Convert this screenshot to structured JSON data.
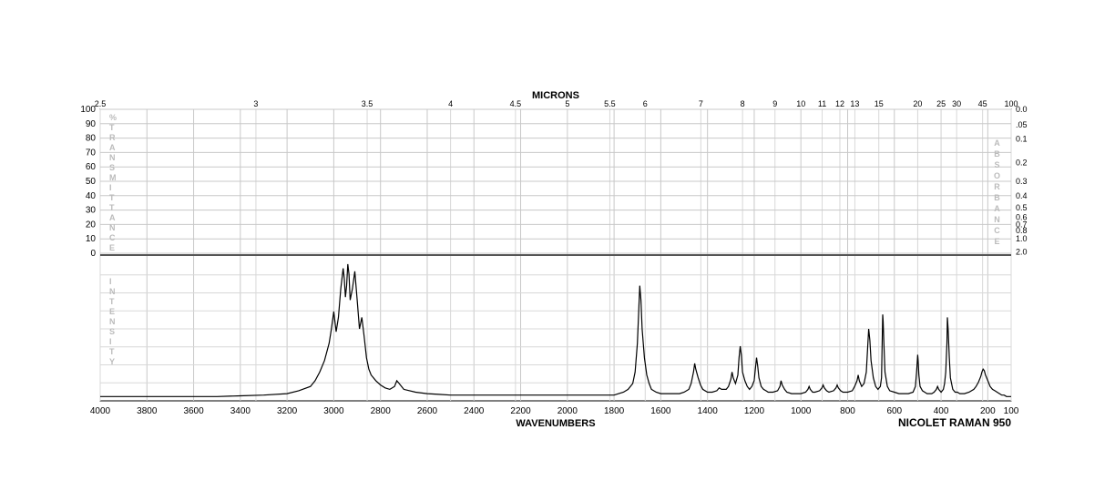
{
  "chart": {
    "type": "line",
    "title_top": "MICRONS",
    "title_bottom": "WAVENUMBERS",
    "instrument": "NICOLET RAMAN 950",
    "background_color": "#ffffff",
    "grid_color": "#c8c8c8",
    "grid_color_light": "#d8d8d8",
    "border_color": "#000000",
    "spectrum_color": "#000000",
    "vertical_label_color": "#bbbbbb",
    "x_wavenumbers": {
      "label": "WAVENUMBERS",
      "min": 100,
      "max": 4000,
      "ticks": [
        4000,
        3800,
        3600,
        3400,
        3200,
        3000,
        2800,
        2600,
        2400,
        2200,
        2000,
        1800,
        1600,
        1400,
        1200,
        1000,
        800,
        600,
        400,
        200,
        100
      ]
    },
    "x_microns": {
      "label": "MICRONS",
      "ticks": [
        2.5,
        3,
        3.5,
        4,
        4.5,
        5,
        5.5,
        6,
        7,
        8,
        9,
        10,
        11,
        12,
        13,
        15,
        20,
        25,
        30,
        45,
        100
      ]
    },
    "y_left": {
      "label_letters": [
        "%",
        "T",
        "R",
        "A",
        "N",
        "S",
        "M",
        "I",
        "T",
        "T",
        "A",
        "N",
        "C",
        "E"
      ],
      "ticks": [
        0,
        10,
        20,
        30,
        40,
        50,
        60,
        70,
        80,
        90,
        100
      ]
    },
    "y_right": {
      "label_letters": [
        "A",
        "B",
        "S",
        "O",
        "R",
        "B",
        "A",
        "N",
        "C",
        "E"
      ],
      "ticks": [
        0.0,
        0.05,
        0.1,
        0.2,
        0.3,
        0.4,
        0.5,
        0.6,
        0.7,
        0.8,
        1.0,
        2.0
      ]
    },
    "y_lower_left": {
      "label_letters": [
        "I",
        "N",
        "T",
        "E",
        "N",
        "S",
        "I",
        "T",
        "Y"
      ]
    },
    "top_plot_height_ratio": 0.43,
    "bottom_plot_height_ratio": 0.43,
    "spectrum_points": [
      [
        4000,
        0.03
      ],
      [
        3900,
        0.03
      ],
      [
        3800,
        0.03
      ],
      [
        3700,
        0.03
      ],
      [
        3600,
        0.03
      ],
      [
        3500,
        0.03
      ],
      [
        3400,
        0.035
      ],
      [
        3300,
        0.04
      ],
      [
        3200,
        0.05
      ],
      [
        3150,
        0.07
      ],
      [
        3100,
        0.1
      ],
      [
        3080,
        0.14
      ],
      [
        3060,
        0.2
      ],
      [
        3040,
        0.28
      ],
      [
        3020,
        0.4
      ],
      [
        3010,
        0.5
      ],
      [
        3000,
        0.62
      ],
      [
        2995,
        0.55
      ],
      [
        2990,
        0.48
      ],
      [
        2980,
        0.58
      ],
      [
        2970,
        0.78
      ],
      [
        2960,
        0.92
      ],
      [
        2955,
        0.85
      ],
      [
        2950,
        0.72
      ],
      [
        2945,
        0.8
      ],
      [
        2940,
        0.95
      ],
      [
        2935,
        0.88
      ],
      [
        2930,
        0.7
      ],
      [
        2920,
        0.78
      ],
      [
        2910,
        0.9
      ],
      [
        2900,
        0.7
      ],
      [
        2890,
        0.5
      ],
      [
        2880,
        0.58
      ],
      [
        2870,
        0.45
      ],
      [
        2860,
        0.3
      ],
      [
        2850,
        0.22
      ],
      [
        2840,
        0.18
      ],
      [
        2820,
        0.14
      ],
      [
        2800,
        0.11
      ],
      [
        2780,
        0.09
      ],
      [
        2760,
        0.08
      ],
      [
        2740,
        0.1
      ],
      [
        2730,
        0.14
      ],
      [
        2720,
        0.12
      ],
      [
        2700,
        0.08
      ],
      [
        2650,
        0.06
      ],
      [
        2600,
        0.05
      ],
      [
        2550,
        0.045
      ],
      [
        2500,
        0.04
      ],
      [
        2450,
        0.04
      ],
      [
        2400,
        0.04
      ],
      [
        2350,
        0.04
      ],
      [
        2300,
        0.04
      ],
      [
        2250,
        0.04
      ],
      [
        2200,
        0.04
      ],
      [
        2150,
        0.04
      ],
      [
        2100,
        0.04
      ],
      [
        2050,
        0.04
      ],
      [
        2000,
        0.04
      ],
      [
        1950,
        0.04
      ],
      [
        1900,
        0.04
      ],
      [
        1850,
        0.04
      ],
      [
        1800,
        0.04
      ],
      [
        1780,
        0.05
      ],
      [
        1760,
        0.06
      ],
      [
        1740,
        0.08
      ],
      [
        1720,
        0.12
      ],
      [
        1710,
        0.2
      ],
      [
        1700,
        0.4
      ],
      [
        1695,
        0.6
      ],
      [
        1690,
        0.8
      ],
      [
        1685,
        0.7
      ],
      [
        1680,
        0.5
      ],
      [
        1670,
        0.3
      ],
      [
        1660,
        0.18
      ],
      [
        1650,
        0.12
      ],
      [
        1640,
        0.08
      ],
      [
        1620,
        0.06
      ],
      [
        1600,
        0.05
      ],
      [
        1580,
        0.05
      ],
      [
        1560,
        0.05
      ],
      [
        1540,
        0.05
      ],
      [
        1520,
        0.05
      ],
      [
        1500,
        0.06
      ],
      [
        1480,
        0.08
      ],
      [
        1470,
        0.12
      ],
      [
        1460,
        0.2
      ],
      [
        1455,
        0.26
      ],
      [
        1450,
        0.22
      ],
      [
        1440,
        0.16
      ],
      [
        1430,
        0.11
      ],
      [
        1420,
        0.08
      ],
      [
        1400,
        0.06
      ],
      [
        1380,
        0.06
      ],
      [
        1360,
        0.07
      ],
      [
        1350,
        0.09
      ],
      [
        1340,
        0.08
      ],
      [
        1320,
        0.08
      ],
      [
        1310,
        0.1
      ],
      [
        1300,
        0.15
      ],
      [
        1295,
        0.2
      ],
      [
        1290,
        0.16
      ],
      [
        1280,
        0.12
      ],
      [
        1270,
        0.18
      ],
      [
        1265,
        0.3
      ],
      [
        1260,
        0.38
      ],
      [
        1255,
        0.32
      ],
      [
        1250,
        0.2
      ],
      [
        1240,
        0.14
      ],
      [
        1230,
        0.1
      ],
      [
        1220,
        0.08
      ],
      [
        1210,
        0.1
      ],
      [
        1200,
        0.14
      ],
      [
        1195,
        0.22
      ],
      [
        1190,
        0.3
      ],
      [
        1185,
        0.24
      ],
      [
        1180,
        0.16
      ],
      [
        1170,
        0.1
      ],
      [
        1160,
        0.08
      ],
      [
        1150,
        0.07
      ],
      [
        1140,
        0.06
      ],
      [
        1120,
        0.06
      ],
      [
        1100,
        0.07
      ],
      [
        1090,
        0.1
      ],
      [
        1085,
        0.14
      ],
      [
        1080,
        0.11
      ],
      [
        1070,
        0.08
      ],
      [
        1060,
        0.06
      ],
      [
        1040,
        0.05
      ],
      [
        1020,
        0.05
      ],
      [
        1000,
        0.05
      ],
      [
        980,
        0.06
      ],
      [
        970,
        0.08
      ],
      [
        965,
        0.1
      ],
      [
        960,
        0.08
      ],
      [
        950,
        0.06
      ],
      [
        940,
        0.06
      ],
      [
        920,
        0.07
      ],
      [
        910,
        0.09
      ],
      [
        905,
        0.11
      ],
      [
        900,
        0.09
      ],
      [
        890,
        0.07
      ],
      [
        880,
        0.06
      ],
      [
        860,
        0.07
      ],
      [
        850,
        0.09
      ],
      [
        845,
        0.11
      ],
      [
        840,
        0.09
      ],
      [
        830,
        0.07
      ],
      [
        820,
        0.06
      ],
      [
        800,
        0.06
      ],
      [
        780,
        0.07
      ],
      [
        770,
        0.1
      ],
      [
        760,
        0.14
      ],
      [
        755,
        0.18
      ],
      [
        750,
        0.14
      ],
      [
        740,
        0.1
      ],
      [
        730,
        0.12
      ],
      [
        720,
        0.2
      ],
      [
        715,
        0.35
      ],
      [
        710,
        0.5
      ],
      [
        705,
        0.42
      ],
      [
        700,
        0.28
      ],
      [
        690,
        0.16
      ],
      [
        680,
        0.1
      ],
      [
        670,
        0.08
      ],
      [
        660,
        0.1
      ],
      [
        655,
        0.16
      ],
      [
        650,
        0.6
      ],
      [
        648,
        0.55
      ],
      [
        645,
        0.4
      ],
      [
        640,
        0.2
      ],
      [
        630,
        0.1
      ],
      [
        620,
        0.07
      ],
      [
        600,
        0.06
      ],
      [
        580,
        0.05
      ],
      [
        560,
        0.05
      ],
      [
        540,
        0.05
      ],
      [
        520,
        0.06
      ],
      [
        510,
        0.1
      ],
      [
        505,
        0.2
      ],
      [
        500,
        0.32
      ],
      [
        498,
        0.28
      ],
      [
        495,
        0.18
      ],
      [
        490,
        0.1
      ],
      [
        480,
        0.07
      ],
      [
        470,
        0.06
      ],
      [
        460,
        0.05
      ],
      [
        450,
        0.05
      ],
      [
        440,
        0.05
      ],
      [
        430,
        0.06
      ],
      [
        420,
        0.08
      ],
      [
        415,
        0.1
      ],
      [
        410,
        0.08
      ],
      [
        400,
        0.06
      ],
      [
        390,
        0.08
      ],
      [
        385,
        0.12
      ],
      [
        380,
        0.2
      ],
      [
        375,
        0.4
      ],
      [
        373,
        0.58
      ],
      [
        370,
        0.5
      ],
      [
        365,
        0.3
      ],
      [
        360,
        0.16
      ],
      [
        350,
        0.08
      ],
      [
        340,
        0.06
      ],
      [
        330,
        0.06
      ],
      [
        320,
        0.05
      ],
      [
        300,
        0.05
      ],
      [
        280,
        0.06
      ],
      [
        260,
        0.08
      ],
      [
        250,
        0.1
      ],
      [
        240,
        0.13
      ],
      [
        230,
        0.17
      ],
      [
        225,
        0.2
      ],
      [
        220,
        0.22
      ],
      [
        215,
        0.21
      ],
      [
        210,
        0.18
      ],
      [
        200,
        0.14
      ],
      [
        190,
        0.1
      ],
      [
        180,
        0.08
      ],
      [
        170,
        0.07
      ],
      [
        160,
        0.06
      ],
      [
        150,
        0.05
      ],
      [
        140,
        0.04
      ],
      [
        130,
        0.04
      ],
      [
        120,
        0.03
      ],
      [
        110,
        0.03
      ],
      [
        100,
        0.03
      ]
    ]
  }
}
